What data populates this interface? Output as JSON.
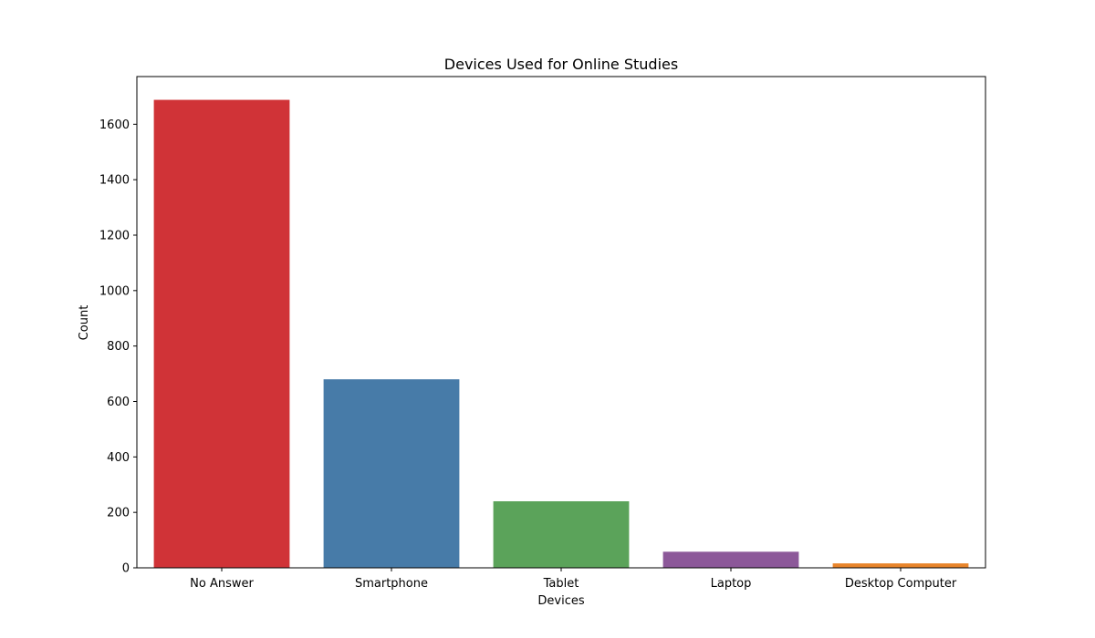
{
  "chart_data": {
    "type": "bar",
    "title": "Devices Used for Online Studies",
    "xlabel": "Devices",
    "ylabel": "Count",
    "categories": [
      "No Answer",
      "Smartphone",
      "Tablet",
      "Laptop",
      "Desktop Computer"
    ],
    "values": [
      1688,
      680,
      240,
      58,
      16
    ],
    "colors": [
      "#d03337",
      "#477ba8",
      "#5ba35a",
      "#8c5899",
      "#e8842a"
    ],
    "ylim": [
      0,
      1772
    ],
    "yticks": [
      0,
      200,
      400,
      600,
      800,
      1000,
      1200,
      1400,
      1600
    ],
    "grid": false,
    "legend": "none"
  }
}
